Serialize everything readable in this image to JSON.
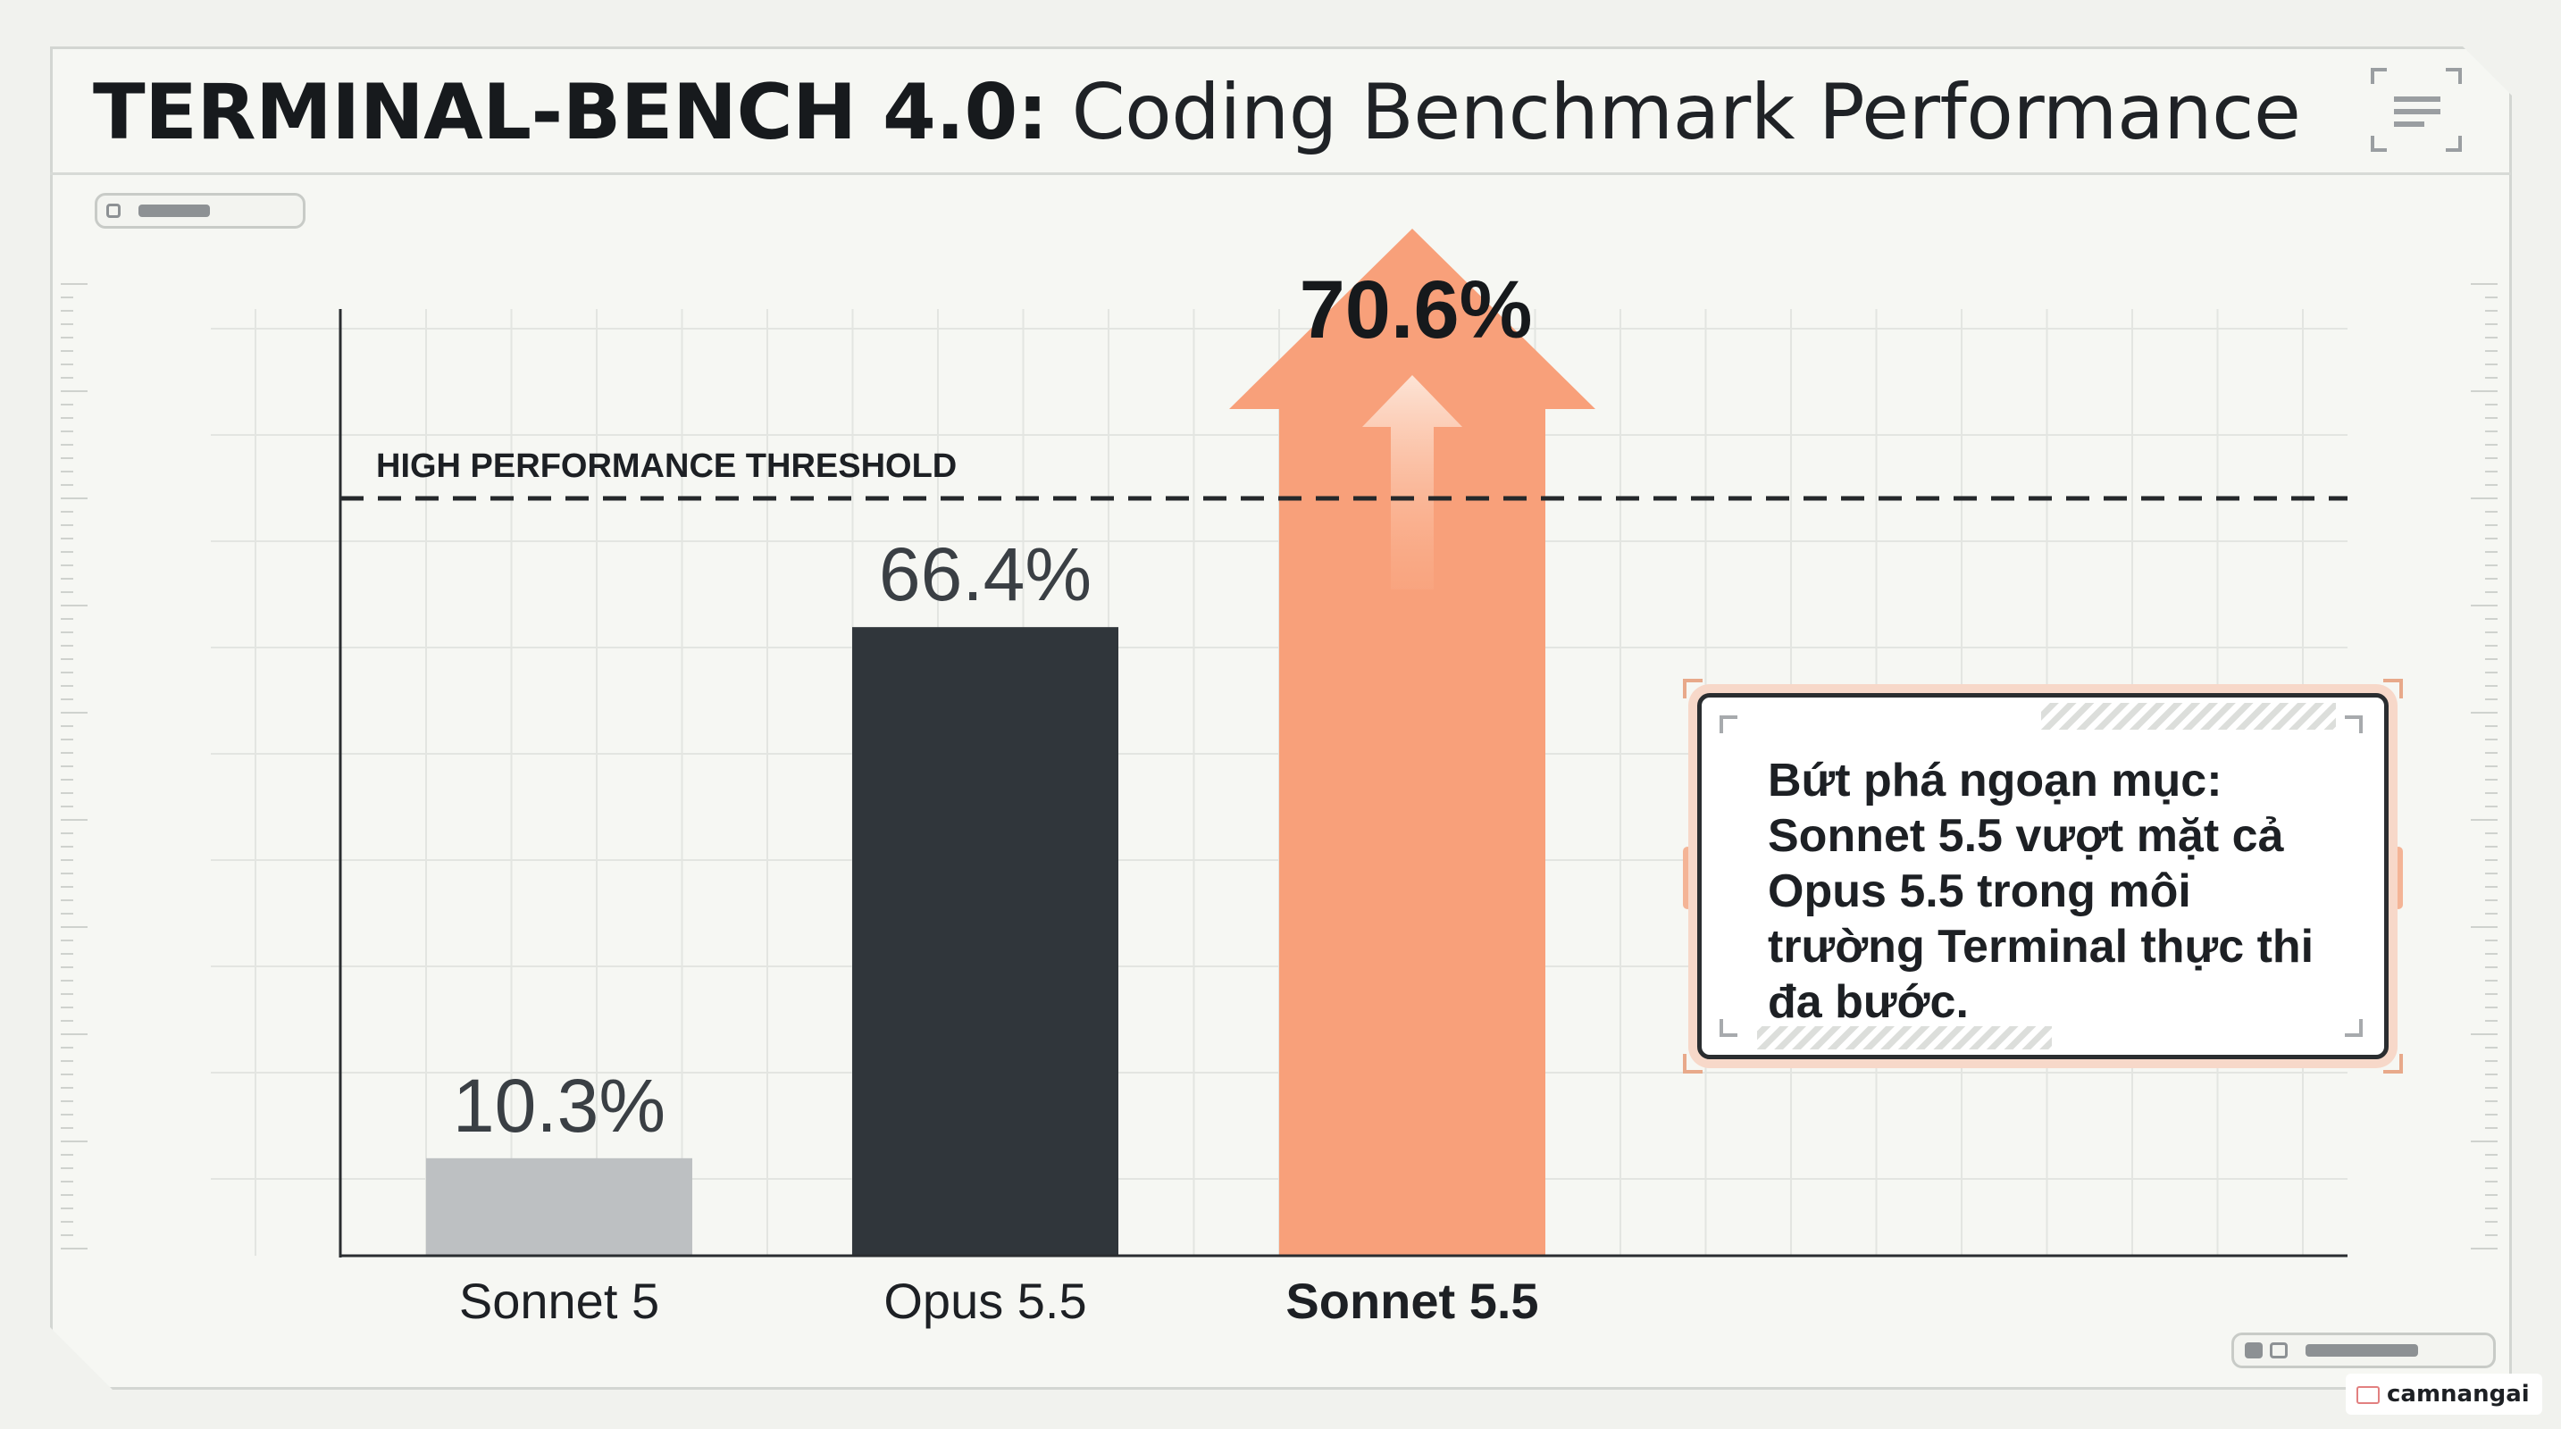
{
  "title": {
    "bold": "TERMINAL-BENCH 4.0:",
    "regular": "Coding Benchmark Performance"
  },
  "chart_data": {
    "type": "bar",
    "title": "TERMINAL-BENCH 4.0: Coding Benchmark Performance",
    "categories": [
      "Sonnet 5",
      "Opus 5.5",
      "Sonnet 5.5"
    ],
    "values": [
      10.3,
      66.4,
      70.6
    ],
    "value_labels": [
      "10.3%",
      "66.4%",
      "70.6%"
    ],
    "bar_colors": [
      "#bdc0c2",
      "#30363b",
      "#f8a07a"
    ],
    "highlight_category": "Sonnet 5.5",
    "threshold": {
      "label": "HIGH PERFORMANCE THRESHOLD",
      "value": 80
    },
    "ylim": [
      0,
      100
    ],
    "xlabel": "",
    "ylabel": "",
    "grid": true
  },
  "callout": {
    "lines": [
      "Bứt phá ngoạn mục:",
      "Sonnet 5.5 vượt mặt cả",
      "Opus 5.5 trong môi",
      "trường Terminal thực thi",
      "đa bước."
    ]
  },
  "watermark": "camnangai",
  "colors": {
    "accent": "#f8a07a",
    "dark": "#30363b",
    "grey": "#bdc0c2",
    "background": "#f1f2ee"
  }
}
